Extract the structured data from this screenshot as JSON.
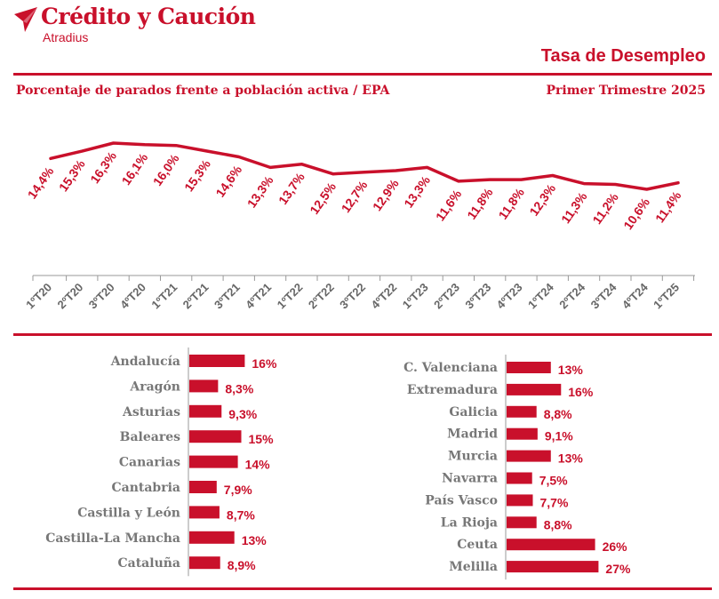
{
  "brand": {
    "name": "Crédito y Caución",
    "sub": "Atradius",
    "color": "#c9102b",
    "logo_icon": "paper-plane-icon"
  },
  "header": {
    "title": "Tasa de Desempleo",
    "subtitle": "Porcentaje de parados frente a población activa / EPA",
    "period": "Primer Trimestre 2025"
  },
  "chart_data": [
    {
      "type": "line",
      "x": [
        "1ºT20",
        "2ºT20",
        "3ºT20",
        "4ºT20",
        "1ºT21",
        "2ºT21",
        "3ºT21",
        "4ºT21",
        "1ºT22",
        "2ºT22",
        "3ºT22",
        "4ºT22",
        "1ºT23",
        "2ºT23",
        "3ºT23",
        "4ºT23",
        "1ºT24",
        "2ºT24",
        "3ºT24",
        "4ºT24",
        "1ºT25"
      ],
      "values": [
        14.4,
        15.3,
        16.3,
        16.1,
        16.0,
        15.3,
        14.6,
        13.3,
        13.7,
        12.5,
        12.7,
        12.9,
        13.3,
        11.6,
        11.8,
        11.8,
        12.3,
        11.3,
        11.2,
        10.6,
        11.4
      ],
      "labels": [
        "14,4%",
        "15,3%",
        "16,3%",
        "16,1%",
        "16,0%",
        "15,3%",
        "14,6%",
        "13,3%",
        "13,7%",
        "12,5%",
        "12,7%",
        "12,9%",
        "13,3%",
        "11,6%",
        "11,8%",
        "11,8%",
        "12,3%",
        "11,3%",
        "11,2%",
        "10,6%",
        "11,4%"
      ],
      "ylim": [
        4,
        18
      ],
      "color": "#c9102b",
      "grid": false
    },
    {
      "type": "bar",
      "orientation": "horizontal",
      "categories": [
        "Andalucía",
        "Aragón",
        "Asturias",
        "Baleares",
        "Canarias",
        "Cantabria",
        "Castilla y León",
        "Castilla-La Mancha",
        "Cataluña"
      ],
      "values": [
        16,
        8.3,
        9.3,
        15,
        14,
        7.9,
        8.7,
        13,
        8.9
      ],
      "labels": [
        "16%",
        "8,3%",
        "9,3%",
        "15%",
        "14%",
        "7,9%",
        "8,7%",
        "13%",
        "8,9%"
      ],
      "color": "#c9102b"
    },
    {
      "type": "bar",
      "orientation": "horizontal",
      "categories": [
        "C. Valenciana",
        "Extremadura",
        "Galicia",
        "Madrid",
        "Murcia",
        "Navarra",
        "País Vasco",
        "La Rioja",
        "Ceuta",
        "Melilla"
      ],
      "values": [
        13,
        16,
        8.8,
        9.1,
        13,
        7.5,
        7.7,
        8.8,
        26,
        27
      ],
      "labels": [
        "13%",
        "16%",
        "8,8%",
        "9,1%",
        "13%",
        "7,5%",
        "7,7%",
        "8,8%",
        "26%",
        "27%"
      ],
      "color": "#c9102b"
    }
  ]
}
